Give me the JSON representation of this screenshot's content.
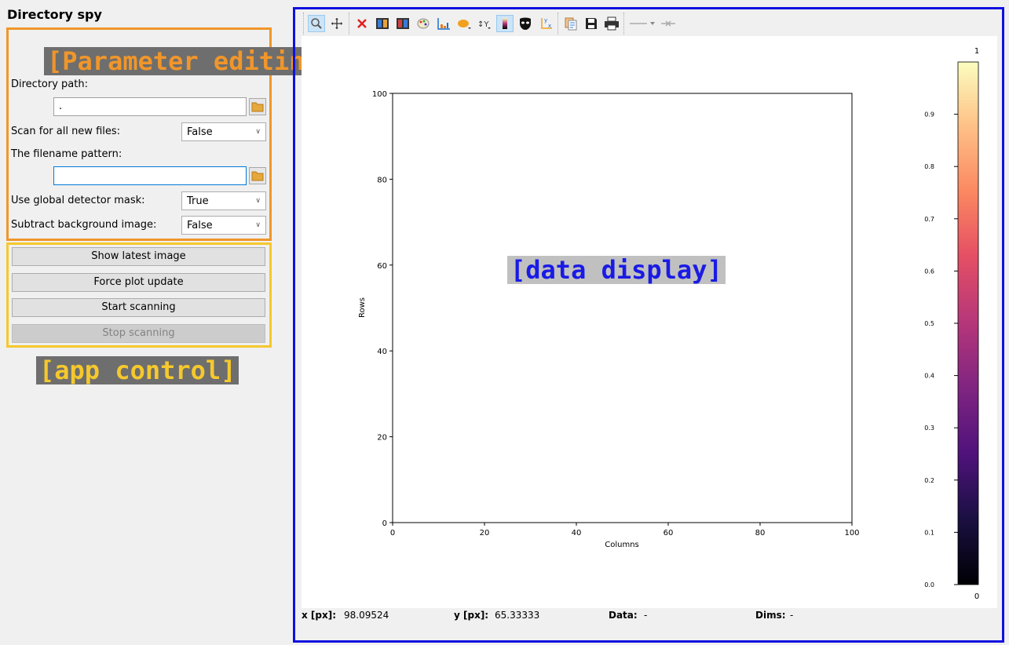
{
  "app_title": "Directory spy",
  "params": {
    "directory_path_label": "Directory path:",
    "directory_path_value": ".",
    "scan_all_label": "Scan for all new files:",
    "scan_all_value": "False",
    "filename_pattern_label": "The filename pattern:",
    "filename_pattern_value": "",
    "use_mask_label": "Use global detector mask:",
    "use_mask_value": "True",
    "subtract_bg_label": "Subtract background image:",
    "subtract_bg_value": "False"
  },
  "controls": {
    "show_latest": "Show latest image",
    "force_update": "Force plot update",
    "start_scanning": "Start scanning",
    "stop_scanning": "Stop scanning"
  },
  "annotations": {
    "parameter_editing": "[Parameter editing]",
    "app_control": "[app control]",
    "data_display": "[data display]",
    "parameter_color": "#f0962a",
    "app_control_color": "#f5c82d",
    "data_display_color": "#1010e0"
  },
  "plot": {
    "xlabel": "Columns",
    "ylabel": "Rows",
    "x_ticks": [
      "0",
      "20",
      "40",
      "60",
      "80",
      "100"
    ],
    "y_ticks": [
      "0",
      "20",
      "40",
      "60",
      "80",
      "100"
    ],
    "colorbar_ticks": [
      "0.0",
      "0.1",
      "0.2",
      "0.3",
      "0.4",
      "0.5",
      "0.6",
      "0.7",
      "0.8",
      "0.9"
    ],
    "colorbar_top": "1",
    "colorbar_bottom": "0"
  },
  "status": {
    "x_label": "x [px]:",
    "x_value": "98.09524",
    "y_label": "y [px]:",
    "y_value": "65.33333",
    "data_label": "Data:",
    "data_value": "-",
    "dims_label": "Dims:",
    "dims_value": "-"
  },
  "toolbar_icons": [
    "zoom-icon",
    "pan-icon",
    "clear-icon",
    "crop-icon",
    "flip-icon",
    "colormap-icon",
    "histogram-icon",
    "roi-icon",
    "y-axis-icon",
    "colorbar-icon",
    "mask-icon",
    "axes-icon",
    "copy-icon",
    "save-icon",
    "print-icon",
    "line-style-icon",
    "marker-icon"
  ]
}
